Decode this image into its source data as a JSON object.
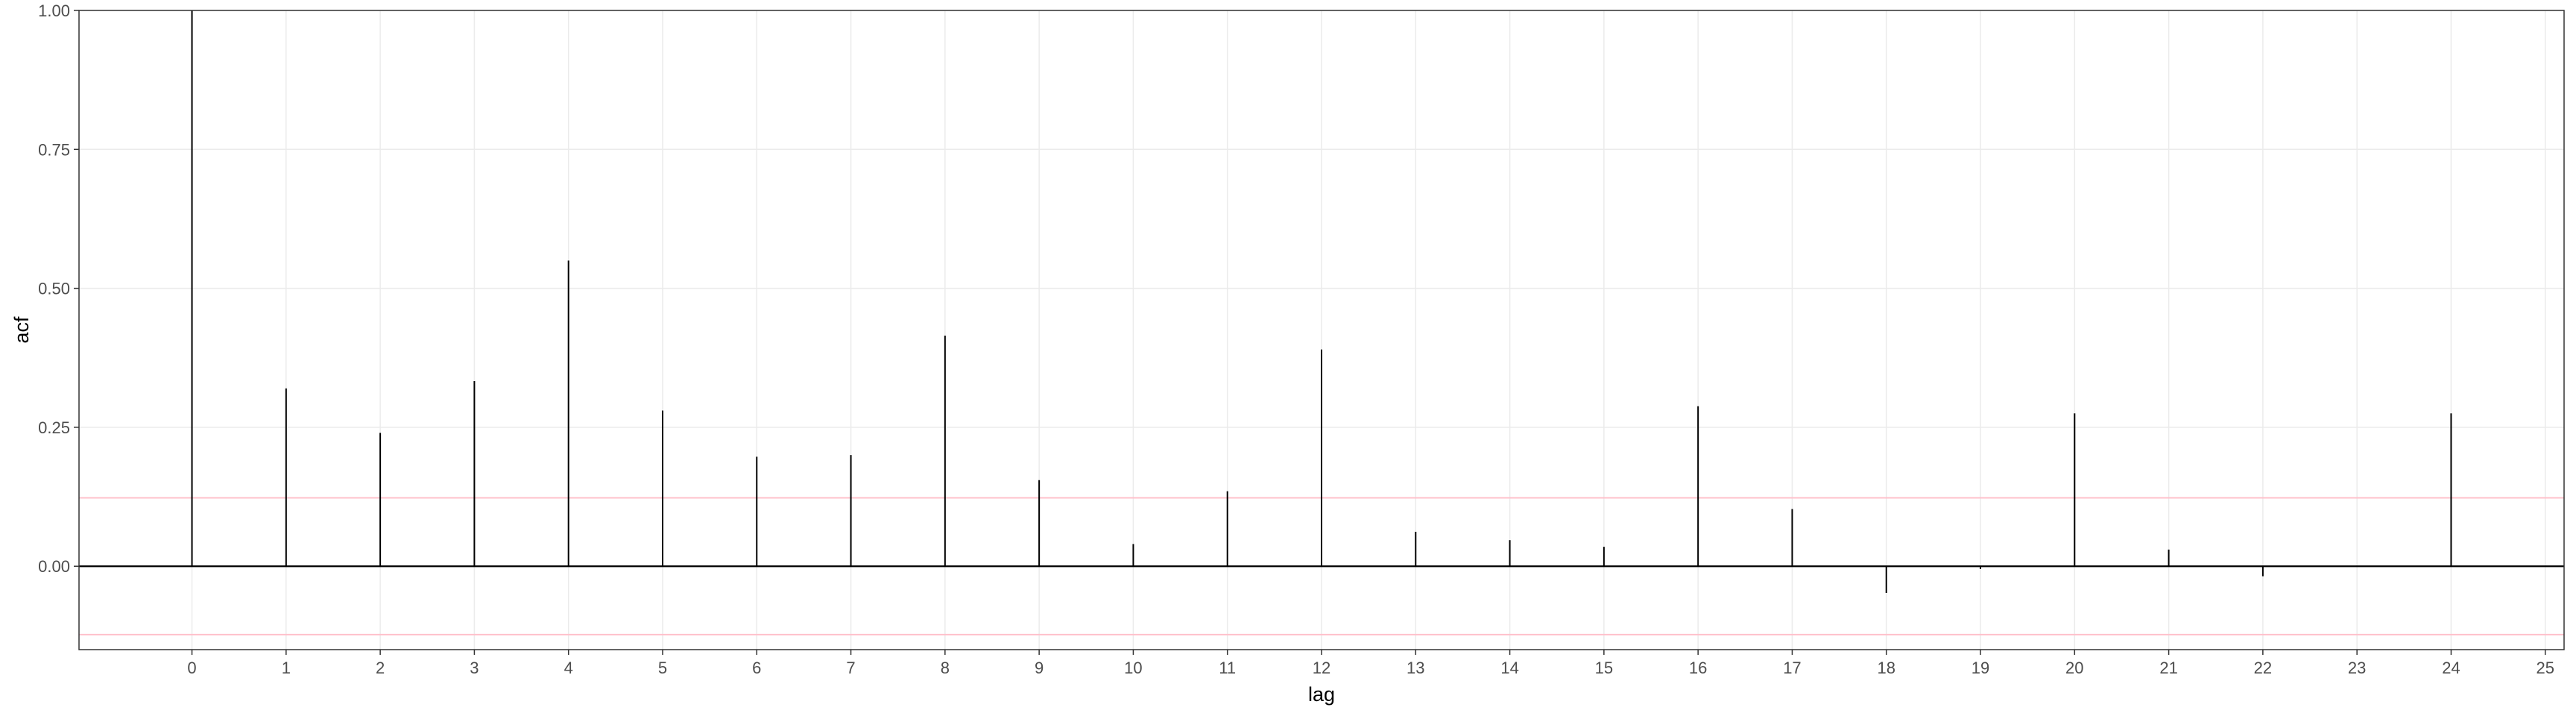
{
  "chart_data": {
    "type": "bar",
    "xlabel": "lag",
    "ylabel": "acf",
    "xlim": [
      -1.2,
      25.2
    ],
    "ylim": [
      -0.15,
      1.0
    ],
    "x_ticks": [
      0,
      1,
      2,
      3,
      4,
      5,
      6,
      7,
      8,
      9,
      10,
      11,
      12,
      13,
      14,
      15,
      16,
      17,
      18,
      19,
      20,
      21,
      22,
      23,
      24,
      25
    ],
    "y_ticks": [
      0.0,
      0.25,
      0.5,
      0.75,
      1.0
    ],
    "y_tick_labels": [
      "0.00",
      "0.25",
      "0.50",
      "0.75",
      "1.00"
    ],
    "grid": true,
    "x": [
      0,
      1,
      2,
      3,
      4,
      5,
      6,
      7,
      8,
      9,
      10,
      11,
      12,
      13,
      14,
      15,
      16,
      17,
      18,
      19,
      20,
      21,
      22,
      23,
      24
    ],
    "values": [
      1.0,
      0.32,
      0.24,
      0.333,
      0.55,
      0.28,
      0.197,
      0.2,
      0.415,
      0.155,
      0.04,
      0.135,
      0.39,
      0.062,
      0.047,
      0.035,
      0.288,
      0.103,
      -0.048,
      -0.005,
      0.275,
      0.03,
      -0.018,
      0.0,
      0.275
    ],
    "confidence_band": [
      -0.123,
      0.123
    ],
    "colors": {
      "bar": "#000000",
      "zero_line": "#000000",
      "confidence_band": "#ffc0cb",
      "grid": "#ebebeb",
      "panel_border": "#333333"
    }
  }
}
